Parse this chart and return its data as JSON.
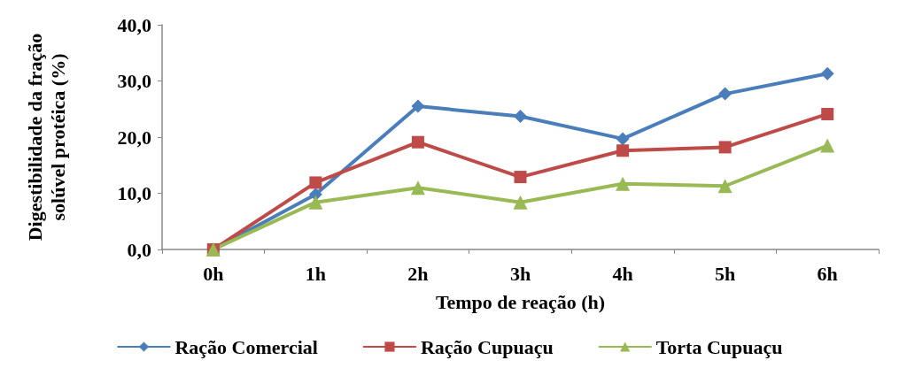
{
  "chart_data": {
    "type": "line",
    "xlabel": "Tempo de reação (h)",
    "ylabel": "Digestibilidade da fração\nsolúvel protéica (%)",
    "categories": [
      "0h",
      "1h",
      "2h",
      "3h",
      "4h",
      "5h",
      "6h"
    ],
    "series": [
      {
        "name": "Ração Comercial",
        "color": "#4a7ebb",
        "marker": "diamond",
        "values": [
          0,
          9.8,
          25.5,
          23.7,
          19.7,
          27.7,
          31.3
        ]
      },
      {
        "name": "Ração Cupuaçu",
        "color": "#be4b48",
        "marker": "square",
        "values": [
          0,
          11.9,
          19.1,
          12.9,
          17.6,
          18.2,
          24.1
        ]
      },
      {
        "name": "Torta Cupuaçu",
        "color": "#98b954",
        "marker": "triangle",
        "values": [
          0,
          8.4,
          11.0,
          8.4,
          11.7,
          11.3,
          18.5
        ]
      }
    ],
    "ylim": [
      0,
      40
    ],
    "yticks": [
      {
        "value": 0,
        "label": "0,0"
      },
      {
        "value": 10,
        "label": "10,0"
      },
      {
        "value": 20,
        "label": "20,0"
      },
      {
        "value": 30,
        "label": "30,0"
      },
      {
        "value": 40,
        "label": "40,0"
      }
    ],
    "grid": false,
    "legend": "bottom",
    "line_style": "solid"
  }
}
